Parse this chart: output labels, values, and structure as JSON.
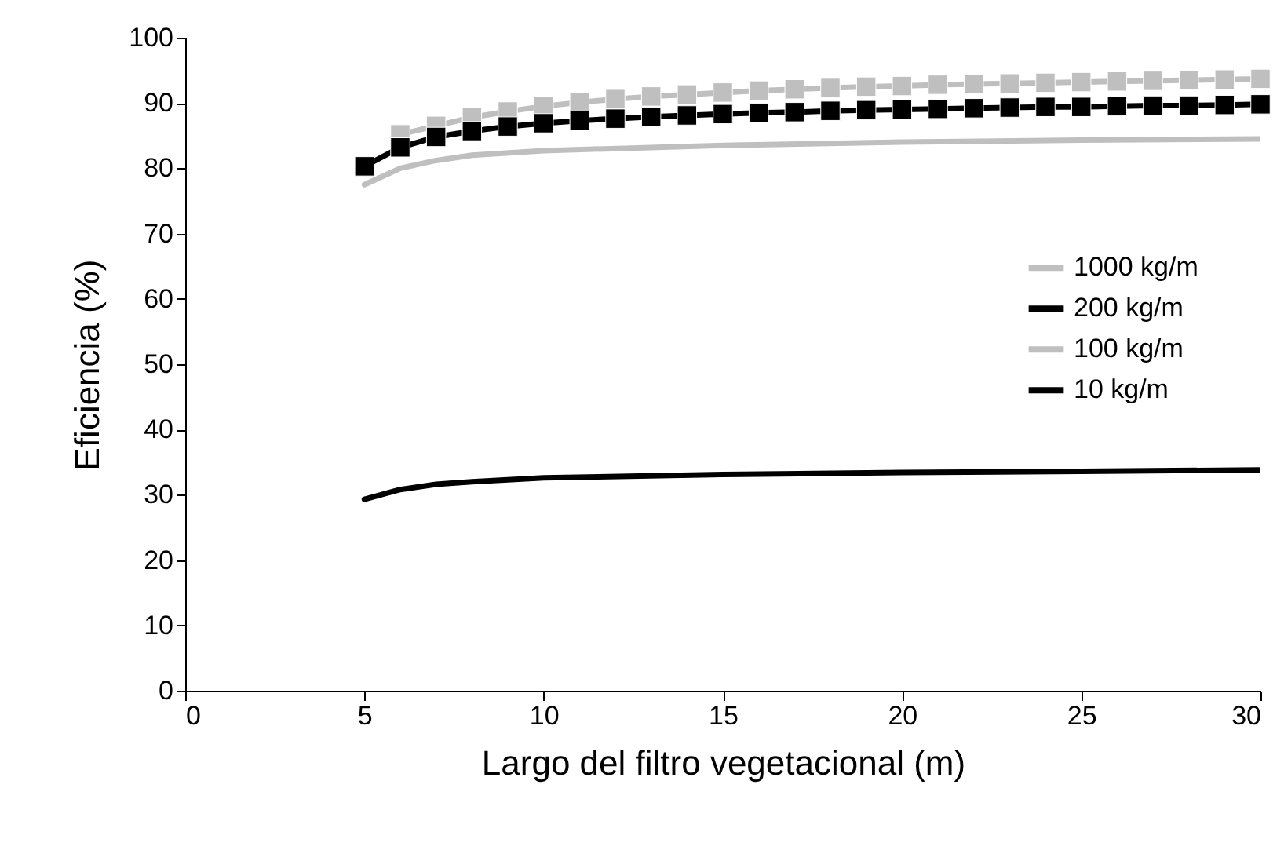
{
  "chart_data": {
    "type": "line",
    "xlabel": "Largo del filtro vegetacional (m)",
    "ylabel": "Eficiencia (%)",
    "xlim": [
      0,
      30
    ],
    "xticks": [
      0,
      5,
      10,
      15,
      20,
      25,
      30
    ],
    "ylim": [
      0,
      100
    ],
    "yticks": [
      0,
      10,
      20,
      30,
      40,
      50,
      60,
      70,
      80,
      90,
      100
    ],
    "grid": false,
    "legend": "right",
    "line_style": "solid",
    "series": [
      {
        "name": "1000 kg/m",
        "color": "#bfbfbf",
        "marker": "square",
        "x": [
          6,
          7,
          8,
          9,
          10,
          11,
          12,
          13,
          14,
          15,
          16,
          17,
          18,
          19,
          20,
          21,
          22,
          23,
          24,
          25,
          26,
          27,
          28,
          29,
          30
        ],
        "values": [
          85.2,
          86.5,
          87.8,
          88.7,
          89.5,
          90.1,
          90.6,
          91.0,
          91.3,
          91.6,
          91.9,
          92.1,
          92.3,
          92.5,
          92.6,
          92.8,
          92.9,
          93.0,
          93.1,
          93.2,
          93.3,
          93.4,
          93.5,
          93.6,
          93.7
        ]
      },
      {
        "name": "200 kg/m",
        "color": "#000000",
        "marker": "square",
        "x": [
          5,
          6,
          7,
          8,
          9,
          10,
          11,
          12,
          13,
          14,
          15,
          16,
          17,
          18,
          19,
          20,
          21,
          22,
          23,
          24,
          25,
          26,
          27,
          28,
          29,
          30
        ],
        "values": [
          80.3,
          83.2,
          84.8,
          85.7,
          86.4,
          86.9,
          87.3,
          87.6,
          87.9,
          88.1,
          88.3,
          88.5,
          88.6,
          88.8,
          88.9,
          89.0,
          89.1,
          89.2,
          89.3,
          89.4,
          89.4,
          89.5,
          89.6,
          89.6,
          89.7,
          89.8
        ]
      },
      {
        "name": "100 kg/m",
        "color": "#bfbfbf",
        "marker": "none",
        "x": [
          5,
          6,
          7,
          8,
          10,
          15,
          20,
          25,
          30
        ],
        "values": [
          77.5,
          80,
          81.2,
          82,
          82.7,
          83.5,
          84,
          84.3,
          84.5
        ]
      },
      {
        "name": "10 kg/m",
        "color": "#000000",
        "marker": "none",
        "x": [
          5,
          6,
          7,
          8,
          10,
          15,
          20,
          25,
          30
        ],
        "values": [
          29.3,
          30.8,
          31.6,
          32,
          32.6,
          33.1,
          33.4,
          33.6,
          33.8
        ]
      }
    ]
  }
}
